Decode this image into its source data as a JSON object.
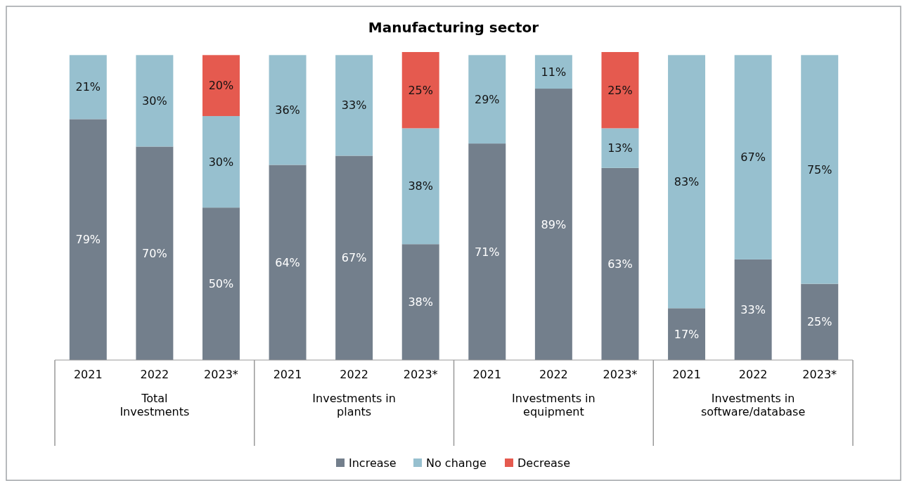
{
  "chart_data": {
    "type": "bar",
    "title": "Manufacturing sector",
    "stacked": true,
    "legend": "bottom",
    "categories": [
      "2021",
      "2022",
      "2023*",
      "2021",
      "2022",
      "2023*",
      "2021",
      "2022",
      "2023*",
      "2021",
      "2022",
      "2023*"
    ],
    "ylim": [
      0,
      101
    ],
    "annotations": [
      "Total Investments",
      "Investments in plants",
      "Investments in equipment",
      "Investments in software/database"
    ],
    "series": [
      {
        "name": "Increase",
        "color": "#737f8c",
        "values": [
          79,
          70,
          50,
          64,
          67,
          38,
          71,
          89,
          63,
          17,
          33,
          25
        ],
        "value_labels": [
          "79%",
          "70%",
          "50%",
          "64%",
          "67%",
          "38%",
          "71%",
          "89%",
          "63%",
          "17%",
          "33%",
          "25%"
        ]
      },
      {
        "name": "No change",
        "color": "#97c0cf",
        "values": [
          21,
          30,
          30,
          36,
          33,
          38,
          29,
          11,
          13,
          83,
          67,
          75
        ],
        "value_labels": [
          "21%",
          "30%",
          "30%",
          "36%",
          "33%",
          "38%",
          "29%",
          "11%",
          "13%",
          "83%",
          "67%",
          "75%"
        ]
      },
      {
        "name": "Decrease",
        "color": "#e55a4f",
        "values": [
          null,
          null,
          20,
          null,
          null,
          25,
          null,
          null,
          25,
          null,
          null,
          null
        ],
        "value_labels": [
          null,
          null,
          "20%",
          null,
          null,
          "25%",
          null,
          null,
          "25%",
          null,
          null,
          null
        ]
      }
    ]
  }
}
